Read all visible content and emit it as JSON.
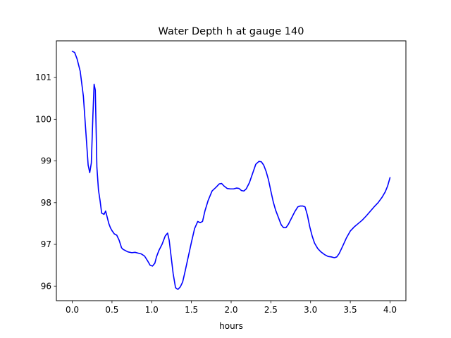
{
  "chart_data": {
    "type": "line",
    "title": "Water Depth h at gauge 140",
    "xlabel": "hours",
    "ylabel": "",
    "xlim": [
      -0.2,
      4.2
    ],
    "ylim": [
      95.65,
      101.88
    ],
    "xticks": [
      0.0,
      0.5,
      1.0,
      1.5,
      2.0,
      2.5,
      3.0,
      3.5,
      4.0
    ],
    "xtick_labels": [
      "0.0",
      "0.5",
      "1.0",
      "1.5",
      "2.0",
      "2.5",
      "3.0",
      "3.5",
      "4.0"
    ],
    "yticks": [
      96,
      97,
      98,
      99,
      100,
      101
    ],
    "ytick_labels": [
      "96",
      "97",
      "98",
      "99",
      "100",
      "101"
    ],
    "grid": false,
    "legend": "none",
    "series": [
      {
        "color": "#0000ff",
        "x": [
          0.0,
          0.03,
          0.06,
          0.1,
          0.14,
          0.18,
          0.2,
          0.22,
          0.24,
          0.26,
          0.275,
          0.29,
          0.3,
          0.31,
          0.33,
          0.35,
          0.37,
          0.4,
          0.42,
          0.44,
          0.46,
          0.48,
          0.5,
          0.53,
          0.56,
          0.59,
          0.62,
          0.64,
          0.66,
          0.7,
          0.75,
          0.79,
          0.83,
          0.87,
          0.91,
          0.95,
          0.98,
          1.01,
          1.04,
          1.06,
          1.09,
          1.13,
          1.17,
          1.2,
          1.22,
          1.24,
          1.27,
          1.3,
          1.33,
          1.36,
          1.39,
          1.42,
          1.46,
          1.5,
          1.54,
          1.58,
          1.61,
          1.64,
          1.67,
          1.71,
          1.76,
          1.81,
          1.85,
          1.88,
          1.91,
          1.95,
          1.99,
          2.03,
          2.07,
          2.1,
          2.13,
          2.16,
          2.19,
          2.23,
          2.27,
          2.31,
          2.35,
          2.38,
          2.41,
          2.44,
          2.47,
          2.5,
          2.53,
          2.56,
          2.6,
          2.63,
          2.66,
          2.69,
          2.72,
          2.76,
          2.8,
          2.84,
          2.87,
          2.9,
          2.93,
          2.96,
          2.99,
          3.02,
          3.05,
          3.09,
          3.13,
          3.18,
          3.22,
          3.26,
          3.3,
          3.33,
          3.36,
          3.4,
          3.45,
          3.5,
          3.55,
          3.6,
          3.65,
          3.7,
          3.75,
          3.8,
          3.85,
          3.9,
          3.94,
          3.97,
          4.0
        ],
        "y": [
          101.63,
          101.6,
          101.45,
          101.15,
          100.55,
          99.45,
          98.9,
          98.72,
          98.95,
          100.1,
          100.84,
          100.7,
          99.8,
          98.85,
          98.3,
          98.05,
          97.75,
          97.72,
          97.8,
          97.65,
          97.5,
          97.4,
          97.33,
          97.25,
          97.22,
          97.1,
          96.92,
          96.88,
          96.86,
          96.82,
          96.8,
          96.81,
          96.79,
          96.77,
          96.72,
          96.6,
          96.5,
          96.48,
          96.55,
          96.7,
          96.85,
          97.0,
          97.2,
          97.27,
          97.1,
          96.78,
          96.3,
          95.96,
          95.92,
          95.98,
          96.1,
          96.35,
          96.7,
          97.05,
          97.38,
          97.55,
          97.52,
          97.55,
          97.8,
          98.05,
          98.28,
          98.37,
          98.45,
          98.46,
          98.4,
          98.34,
          98.33,
          98.33,
          98.35,
          98.34,
          98.29,
          98.28,
          98.33,
          98.48,
          98.7,
          98.92,
          98.99,
          98.98,
          98.9,
          98.75,
          98.55,
          98.28,
          98.02,
          97.82,
          97.62,
          97.47,
          97.4,
          97.4,
          97.48,
          97.63,
          97.78,
          97.9,
          97.92,
          97.92,
          97.9,
          97.7,
          97.42,
          97.2,
          97.03,
          96.9,
          96.82,
          96.75,
          96.71,
          96.7,
          96.68,
          96.7,
          96.78,
          96.94,
          97.15,
          97.32,
          97.42,
          97.5,
          97.58,
          97.68,
          97.79,
          97.9,
          98.0,
          98.13,
          98.26,
          98.4,
          98.6
        ]
      }
    ]
  }
}
